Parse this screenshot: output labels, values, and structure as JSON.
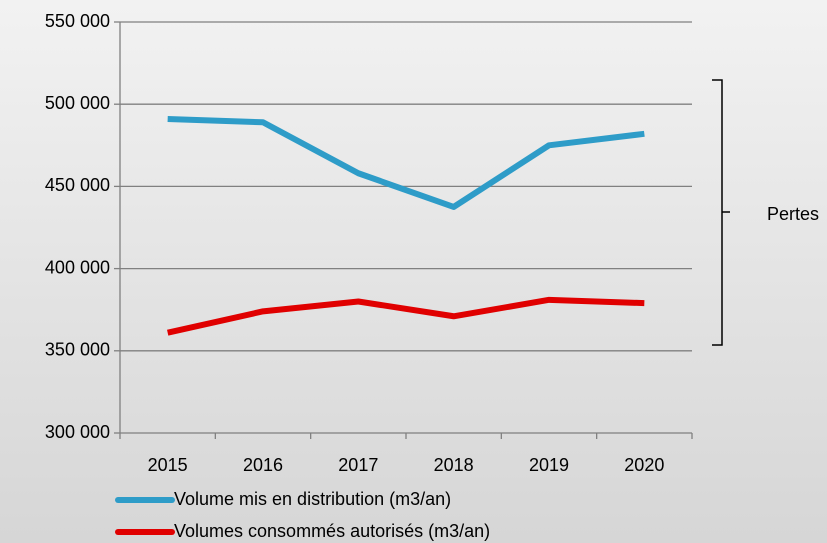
{
  "chart_data": {
    "type": "line",
    "categories": [
      "2015",
      "2016",
      "2017",
      "2018",
      "2019",
      "2020"
    ],
    "series": [
      {
        "name": "Volume mis en distribution (m3/an)",
        "color": "#2e9cc8",
        "values": [
          491000,
          489000,
          458000,
          437500,
          475000,
          482000
        ]
      },
      {
        "name": "Volumes consommés autorisés (m3/an)",
        "color": "#e00000",
        "values": [
          361000,
          374000,
          380000,
          371000,
          381000,
          379000
        ]
      }
    ],
    "ylim": [
      300000,
      550000
    ],
    "yticks": [
      {
        "value": 300000,
        "label": "300 000"
      },
      {
        "value": 350000,
        "label": "350 000"
      },
      {
        "value": 400000,
        "label": "400 000"
      },
      {
        "value": 450000,
        "label": "450 000"
      },
      {
        "value": 500000,
        "label": "500 000"
      },
      {
        "value": 550000,
        "label": "550 000"
      }
    ],
    "grid": true,
    "legend": "bottom",
    "annotations": [
      {
        "text": "Pertes"
      }
    ]
  }
}
